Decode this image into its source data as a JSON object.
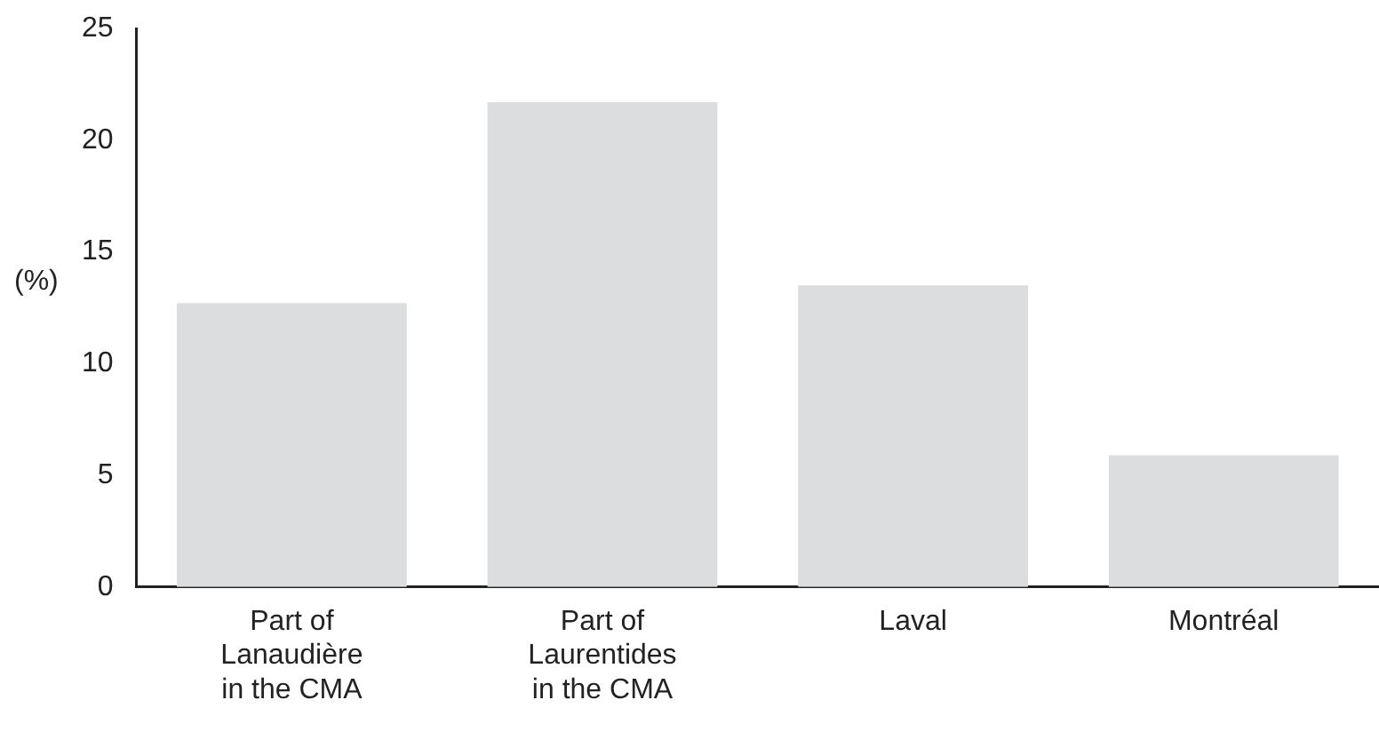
{
  "chart_data": {
    "type": "bar",
    "ylabel": "(%)",
    "categories": [
      "Part of Lanaudière in the CMA",
      "Part of Laurentides in the CMA",
      "Laval",
      "Montréal"
    ],
    "values": [
      12.7,
      21.7,
      13.5,
      5.9
    ],
    "color": "#dcdddf",
    "ylim": [
      0,
      25
    ],
    "yticks": [
      0,
      5,
      10,
      15,
      20,
      25
    ],
    "grid": false,
    "legend": false
  }
}
